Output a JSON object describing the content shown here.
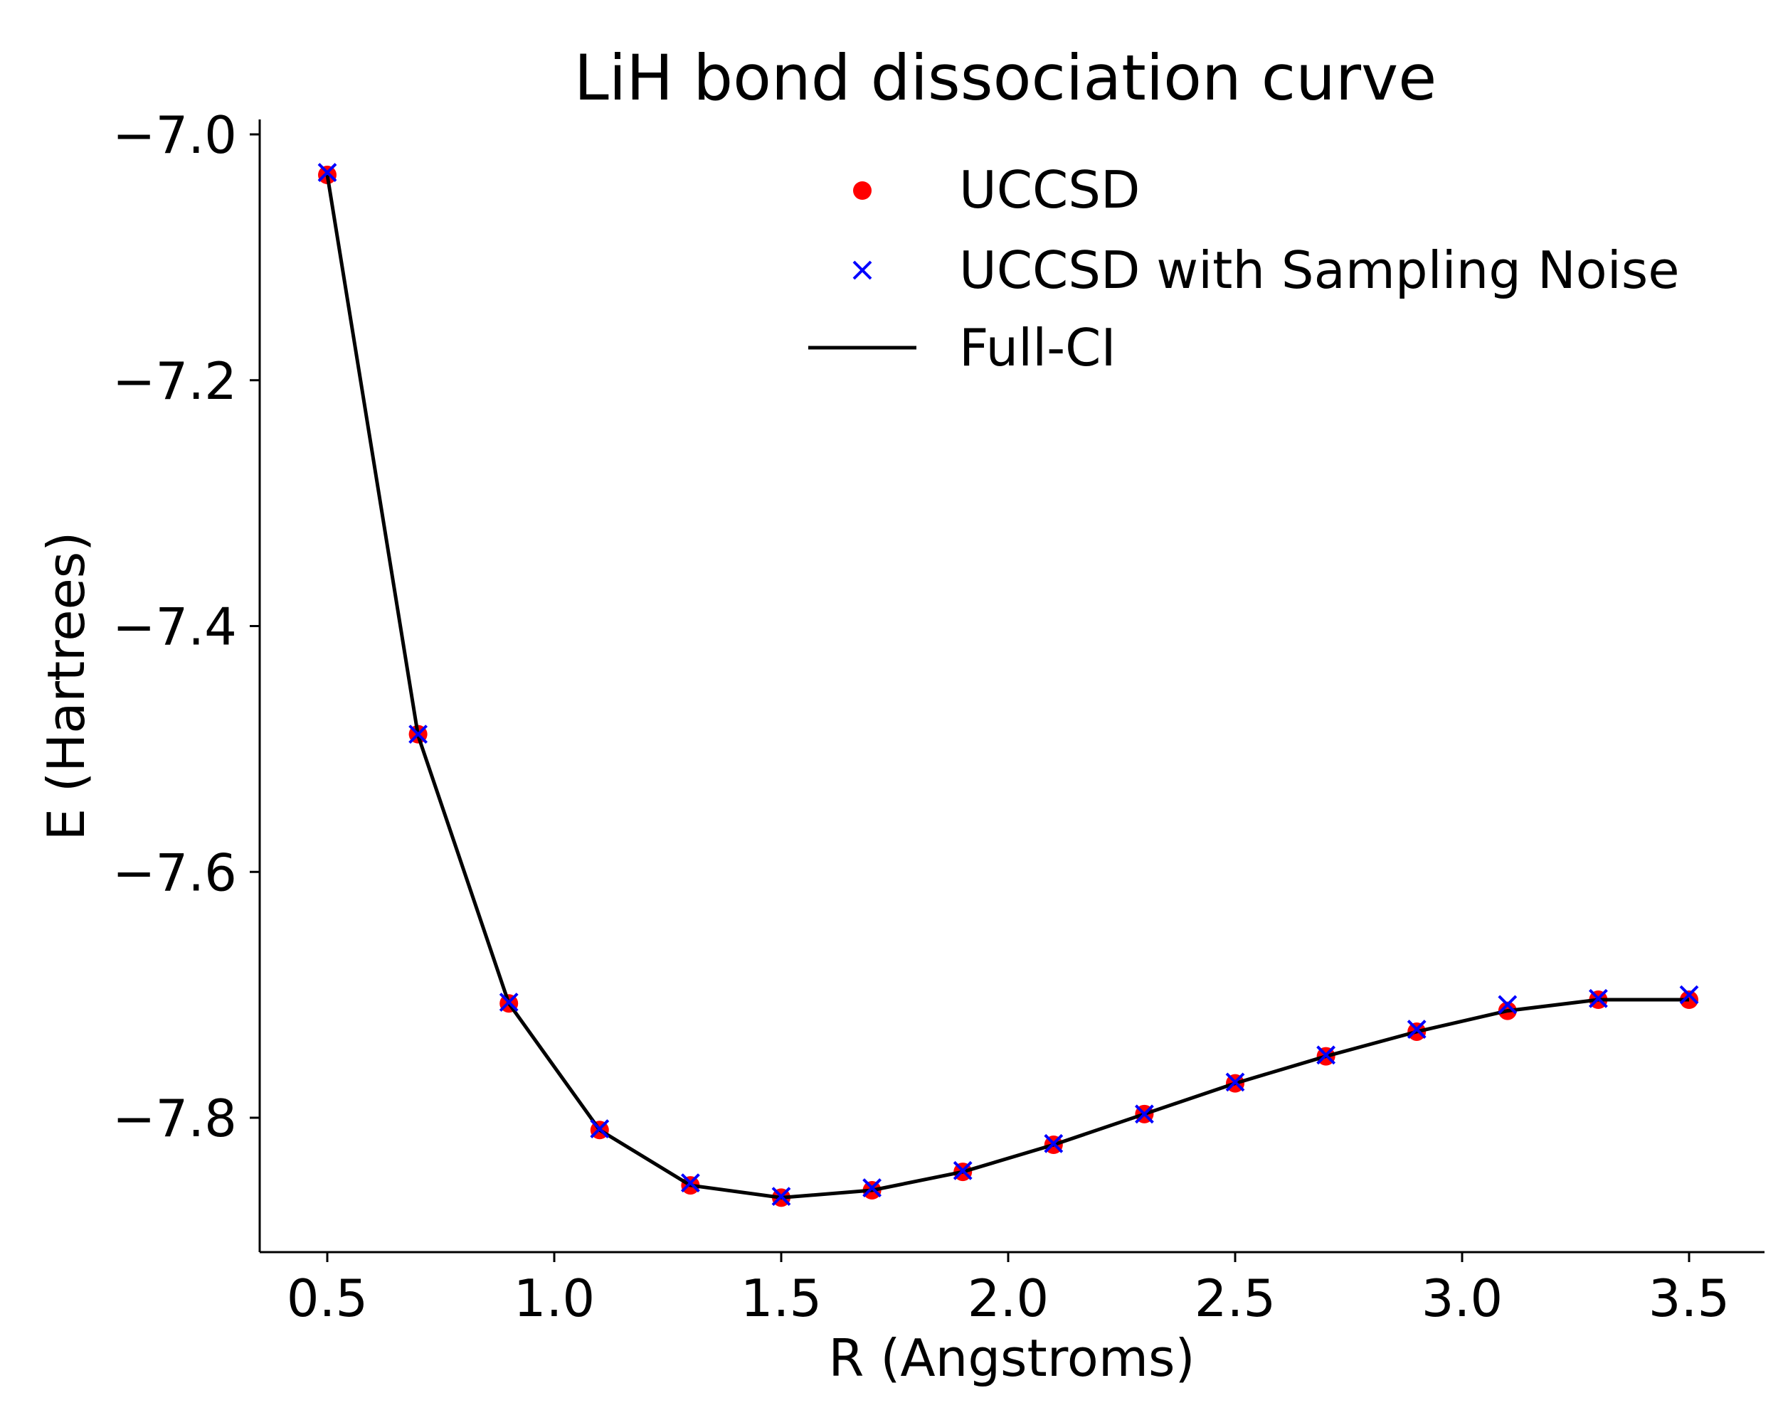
{
  "chart_data": {
    "type": "line",
    "title": "LiH bond dissociation curve",
    "xlabel": "R (Angstroms)",
    "ylabel": "E (Hartrees)",
    "xlim": [
      0.35,
      3.65
    ],
    "ylim": [
      -7.89,
      -6.99
    ],
    "xticks": [
      0.5,
      1.0,
      1.5,
      2.0,
      2.5,
      3.0,
      3.5
    ],
    "xtick_labels": [
      "0.5",
      "1.0",
      "1.5",
      "2.0",
      "2.5",
      "3.0",
      "3.5"
    ],
    "yticks": [
      -7.0,
      -7.2,
      -7.4,
      -7.6,
      -7.8
    ],
    "ytick_labels": [
      "−7.0",
      "−7.2",
      "−7.4",
      "−7.6",
      "−7.8"
    ],
    "grid": false,
    "legend_position": "top-right",
    "x": [
      0.5,
      0.7,
      0.9,
      1.1,
      1.3,
      1.5,
      1.7,
      1.9,
      2.1,
      2.3,
      2.5,
      2.7,
      2.9,
      3.1,
      3.3,
      3.5
    ],
    "series": [
      {
        "name": "UCCSD",
        "style": "dot",
        "color": "#ff0000",
        "values": [
          -7.033,
          -7.488,
          -7.707,
          -7.81,
          -7.855,
          -7.865,
          -7.859,
          -7.844,
          -7.822,
          -7.797,
          -7.772,
          -7.75,
          -7.73,
          -7.713,
          -7.704,
          -7.704
        ]
      },
      {
        "name": "UCCSD with Sampling Noise",
        "style": "x",
        "color": "#0000ff",
        "values": [
          -7.031,
          -7.488,
          -7.706,
          -7.809,
          -7.853,
          -7.864,
          -7.857,
          -7.843,
          -7.821,
          -7.797,
          -7.771,
          -7.749,
          -7.728,
          -7.708,
          -7.703,
          -7.7
        ]
      },
      {
        "name": "Full-CI",
        "style": "line",
        "color": "#000000",
        "values": [
          -7.033,
          -7.489,
          -7.707,
          -7.81,
          -7.855,
          -7.865,
          -7.859,
          -7.844,
          -7.822,
          -7.797,
          -7.772,
          -7.75,
          -7.73,
          -7.713,
          -7.704,
          -7.704
        ]
      }
    ]
  }
}
